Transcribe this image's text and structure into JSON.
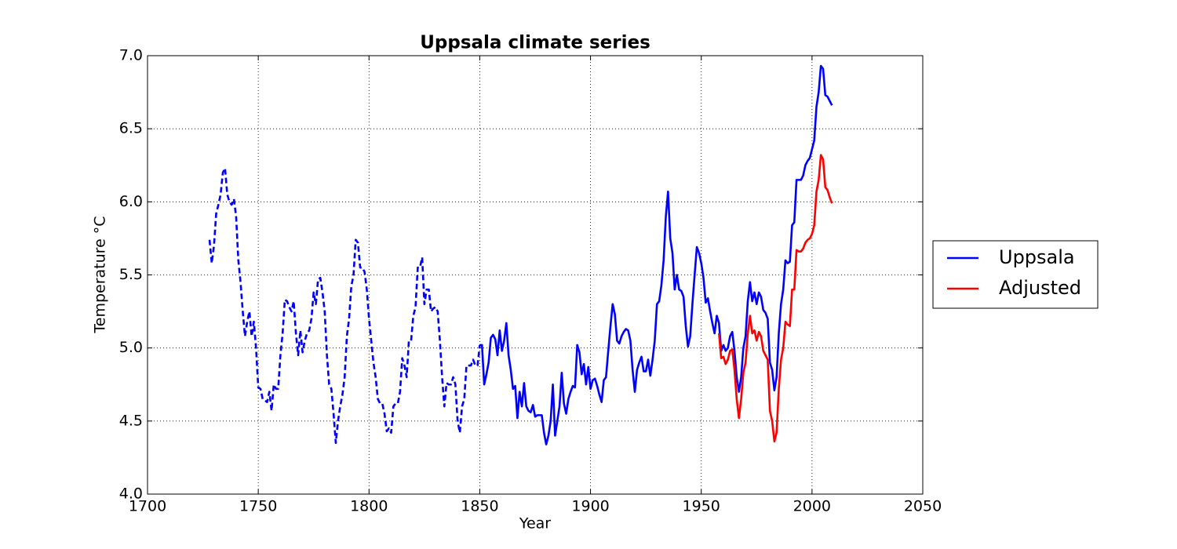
{
  "chart_data": {
    "type": "line",
    "title": "Uppsala climate series",
    "xlabel": "Year",
    "ylabel": "Temperature °C",
    "xlim": [
      1700,
      2050
    ],
    "xticks": [
      1700,
      1750,
      1800,
      1850,
      1900,
      1950,
      2000,
      2050
    ],
    "ylim": [
      4.0,
      7.0
    ],
    "yticks": [
      {
        "value": 4.0,
        "label": "4.0"
      },
      {
        "value": 4.5,
        "label": "4.5"
      },
      {
        "value": 5.0,
        "label": "5.0"
      },
      {
        "value": 5.5,
        "label": "5.5"
      },
      {
        "value": 6.0,
        "label": "6.0"
      },
      {
        "value": 6.5,
        "label": "6.5"
      },
      {
        "value": 7.0,
        "label": "7.0"
      }
    ],
    "grid": true,
    "legend": "outside right",
    "series": [
      {
        "name": "Uppsala",
        "color": "#0000ff",
        "dashed_x_range": [
          1728,
          1850
        ],
        "x": [
          1728,
          1729,
          1730,
          1731,
          1732,
          1733,
          1734,
          1735,
          1736,
          1737,
          1738,
          1739,
          1740,
          1741,
          1742,
          1743,
          1744,
          1745,
          1746,
          1747,
          1748,
          1749,
          1750,
          1751,
          1752,
          1753,
          1754,
          1755,
          1756,
          1757,
          1758,
          1759,
          1760,
          1761,
          1762,
          1763,
          1764,
          1765,
          1766,
          1767,
          1768,
          1769,
          1770,
          1771,
          1772,
          1773,
          1774,
          1775,
          1776,
          1777,
          1778,
          1779,
          1780,
          1781,
          1782,
          1783,
          1784,
          1785,
          1786,
          1787,
          1788,
          1789,
          1790,
          1791,
          1792,
          1793,
          1794,
          1795,
          1796,
          1797,
          1798,
          1799,
          1800,
          1801,
          1802,
          1803,
          1804,
          1805,
          1806,
          1807,
          1808,
          1809,
          1810,
          1811,
          1812,
          1813,
          1814,
          1815,
          1816,
          1817,
          1818,
          1819,
          1820,
          1821,
          1822,
          1823,
          1824,
          1825,
          1826,
          1827,
          1828,
          1829,
          1830,
          1831,
          1832,
          1833,
          1834,
          1835,
          1836,
          1837,
          1838,
          1839,
          1840,
          1841,
          1842,
          1843,
          1844,
          1845,
          1846,
          1847,
          1848,
          1849,
          1850,
          1851,
          1852,
          1853,
          1854,
          1855,
          1856,
          1857,
          1858,
          1859,
          1860,
          1861,
          1862,
          1863,
          1864,
          1865,
          1866,
          1867,
          1868,
          1869,
          1870,
          1871,
          1872,
          1873,
          1874,
          1875,
          1876,
          1877,
          1878,
          1879,
          1880,
          1881,
          1882,
          1883,
          1884,
          1885,
          1886,
          1887,
          1888,
          1889,
          1890,
          1891,
          1892,
          1893,
          1894,
          1895,
          1896,
          1897,
          1898,
          1899,
          1900,
          1901,
          1902,
          1903,
          1904,
          1905,
          1906,
          1907,
          1908,
          1909,
          1910,
          1911,
          1912,
          1913,
          1914,
          1915,
          1916,
          1917,
          1918,
          1919,
          1920,
          1921,
          1922,
          1923,
          1924,
          1925,
          1926,
          1927,
          1928,
          1929,
          1930,
          1931,
          1932,
          1933,
          1934,
          1935,
          1936,
          1937,
          1938,
          1939,
          1940,
          1941,
          1942,
          1943,
          1944,
          1945,
          1946,
          1947,
          1948,
          1949,
          1950,
          1951,
          1952,
          1953,
          1954,
          1955,
          1956,
          1957,
          1958,
          1959,
          1960,
          1961,
          1962,
          1963,
          1964,
          1965,
          1966,
          1967,
          1968,
          1969,
          1970,
          1971,
          1972,
          1973,
          1974,
          1975,
          1976,
          1977,
          1978,
          1979,
          1980,
          1981,
          1982,
          1983,
          1984,
          1985,
          1986,
          1987,
          1988,
          1989,
          1990,
          1991,
          1992,
          1993,
          1994,
          1995,
          1996,
          1997,
          1998,
          1999,
          2000,
          2001,
          2002,
          2003,
          2004,
          2005,
          2006,
          2007,
          2008,
          2009
        ],
        "values": [
          5.74,
          5.58,
          5.7,
          5.92,
          5.98,
          6.05,
          6.2,
          6.23,
          6.05,
          6.0,
          5.98,
          6.02,
          5.9,
          5.6,
          5.45,
          5.25,
          5.08,
          5.18,
          5.25,
          5.08,
          5.18,
          5.0,
          4.73,
          4.72,
          4.65,
          4.64,
          4.63,
          4.7,
          4.57,
          4.75,
          4.72,
          4.72,
          4.95,
          5.1,
          5.33,
          5.32,
          5.28,
          5.25,
          5.32,
          5.1,
          4.95,
          5.12,
          4.97,
          5.05,
          5.1,
          5.12,
          5.2,
          5.38,
          5.3,
          5.47,
          5.48,
          5.38,
          5.25,
          4.95,
          4.75,
          4.72,
          4.55,
          4.35,
          4.5,
          4.6,
          4.68,
          4.8,
          5.08,
          5.2,
          5.42,
          5.5,
          5.74,
          5.72,
          5.55,
          5.55,
          5.52,
          5.4,
          5.2,
          5.05,
          4.9,
          4.8,
          4.65,
          4.62,
          4.62,
          4.55,
          4.43,
          4.45,
          4.42,
          4.6,
          4.62,
          4.62,
          4.7,
          4.93,
          4.88,
          4.8,
          5.05,
          5.05,
          5.22,
          5.28,
          5.55,
          5.55,
          5.62,
          5.3,
          5.4,
          5.4,
          5.25,
          5.27,
          5.28,
          5.25,
          5.05,
          4.8,
          4.6,
          4.76,
          4.75,
          4.75,
          4.8,
          4.75,
          4.5,
          4.42,
          4.6,
          4.65,
          4.88,
          4.88,
          4.88,
          4.92,
          4.88,
          4.88,
          5.02,
          5.02,
          4.75,
          4.82,
          4.9,
          5.07,
          5.09,
          5.06,
          4.95,
          5.12,
          4.98,
          5.05,
          5.17,
          4.95,
          4.85,
          4.72,
          4.74,
          4.52,
          4.7,
          4.6,
          4.76,
          4.6,
          4.57,
          4.56,
          4.61,
          4.53,
          4.54,
          4.54,
          4.54,
          4.42,
          4.34,
          4.4,
          4.5,
          4.75,
          4.4,
          4.5,
          4.6,
          4.83,
          4.62,
          4.55,
          4.65,
          4.7,
          4.74,
          4.73,
          5.02,
          4.97,
          4.82,
          4.89,
          4.75,
          4.87,
          4.72,
          4.78,
          4.79,
          4.74,
          4.68,
          4.63,
          4.78,
          4.8,
          4.98,
          5.15,
          5.3,
          5.23,
          5.05,
          5.03,
          5.08,
          5.11,
          5.13,
          5.12,
          5.05,
          4.85,
          4.7,
          4.85,
          4.9,
          4.94,
          4.84,
          4.84,
          4.92,
          4.81,
          4.92,
          5.05,
          5.3,
          5.32,
          5.43,
          5.6,
          5.9,
          6.07,
          5.75,
          5.65,
          5.4,
          5.5,
          5.4,
          5.39,
          5.35,
          5.15,
          5.01,
          5.08,
          5.3,
          5.5,
          5.69,
          5.65,
          5.58,
          5.48,
          5.31,
          5.34,
          5.25,
          5.17,
          5.1,
          5.22,
          5.17,
          4.98,
          5.02,
          4.98,
          5.0,
          5.08,
          5.11,
          4.98,
          4.8,
          4.7,
          4.8,
          5.0,
          5.08,
          5.32,
          5.45,
          5.32,
          5.38,
          5.3,
          5.38,
          5.35,
          5.26,
          5.24,
          5.2,
          4.9,
          4.85,
          4.71,
          4.8,
          5.1,
          5.3,
          5.4,
          5.6,
          5.58,
          5.59,
          5.84,
          5.86,
          6.15,
          6.15,
          6.15,
          6.18,
          6.25,
          6.28,
          6.3,
          6.36,
          6.42,
          6.65,
          6.75,
          6.93,
          6.91,
          6.73,
          6.72,
          6.69,
          6.66
        ]
      },
      {
        "name": "Adjusted",
        "color": "#ff0000",
        "x": [
          1958,
          1959,
          1960,
          1961,
          1962,
          1963,
          1964,
          1965,
          1966,
          1967,
          1968,
          1969,
          1970,
          1971,
          1972,
          1973,
          1974,
          1975,
          1976,
          1977,
          1978,
          1979,
          1980,
          1981,
          1982,
          1983,
          1984,
          1985,
          1986,
          1987,
          1988,
          1989,
          1990,
          1991,
          1992,
          1993,
          1994,
          1995,
          1996,
          1997,
          1998,
          1999,
          2000,
          2001,
          2002,
          2003,
          2004,
          2005,
          2006,
          2007,
          2008,
          2009
        ],
        "values": [
          5.1,
          4.93,
          4.94,
          4.89,
          4.92,
          4.98,
          4.99,
          4.85,
          4.65,
          4.52,
          4.65,
          4.83,
          4.9,
          5.1,
          5.22,
          5.1,
          5.12,
          5.05,
          5.11,
          5.08,
          4.98,
          4.95,
          4.92,
          4.57,
          4.5,
          4.36,
          4.42,
          4.72,
          4.92,
          5.0,
          5.18,
          5.16,
          5.15,
          5.4,
          5.4,
          5.67,
          5.66,
          5.66,
          5.68,
          5.72,
          5.74,
          5.75,
          5.78,
          5.84,
          6.07,
          6.15,
          6.32,
          6.29,
          6.1,
          6.08,
          6.03,
          5.99
        ]
      }
    ]
  }
}
